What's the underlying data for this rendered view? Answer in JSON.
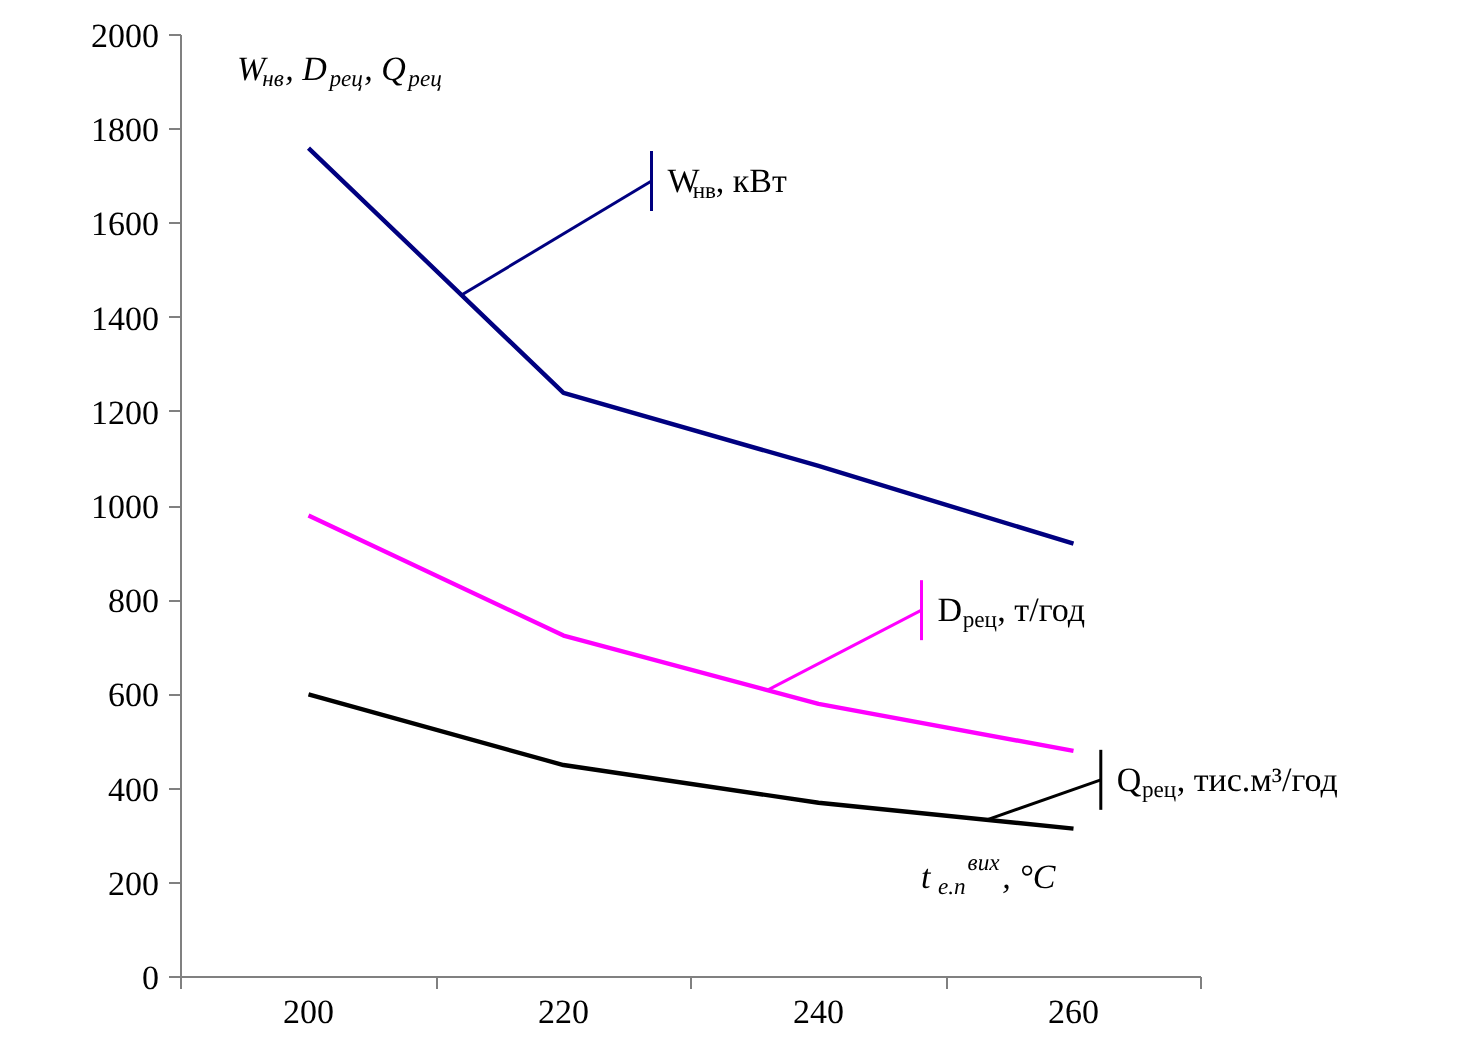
{
  "chart_data": {
    "type": "line",
    "ylabel": "W$_{нв}$, D$_{рец}$, Q$_{рец}$",
    "xlabel": "t$_{е.п}$$^{вих}$, °C",
    "categories": [
      "200",
      "220",
      "240",
      "260"
    ],
    "series": [
      {
        "name": "W$_{нв}$, кВт",
        "color": "#000080",
        "values": [
          1760,
          1240,
          1085,
          920
        ]
      },
      {
        "name": "D$_{рец}$, т/год",
        "color": "#ff00ff",
        "values": [
          980,
          725,
          580,
          480
        ]
      },
      {
        "name": "Q$_{рец}$, тис.м³/год",
        "color": "#000000",
        "values": [
          600,
          450,
          370,
          315
        ]
      }
    ],
    "ylim": [
      0,
      2000
    ],
    "yticks": [
      0,
      200,
      400,
      600,
      800,
      1000,
      1200,
      1400,
      1600,
      1800,
      2000
    ],
    "grid": false,
    "legend": "right",
    "marker": "none",
    "line_style": "solid"
  }
}
